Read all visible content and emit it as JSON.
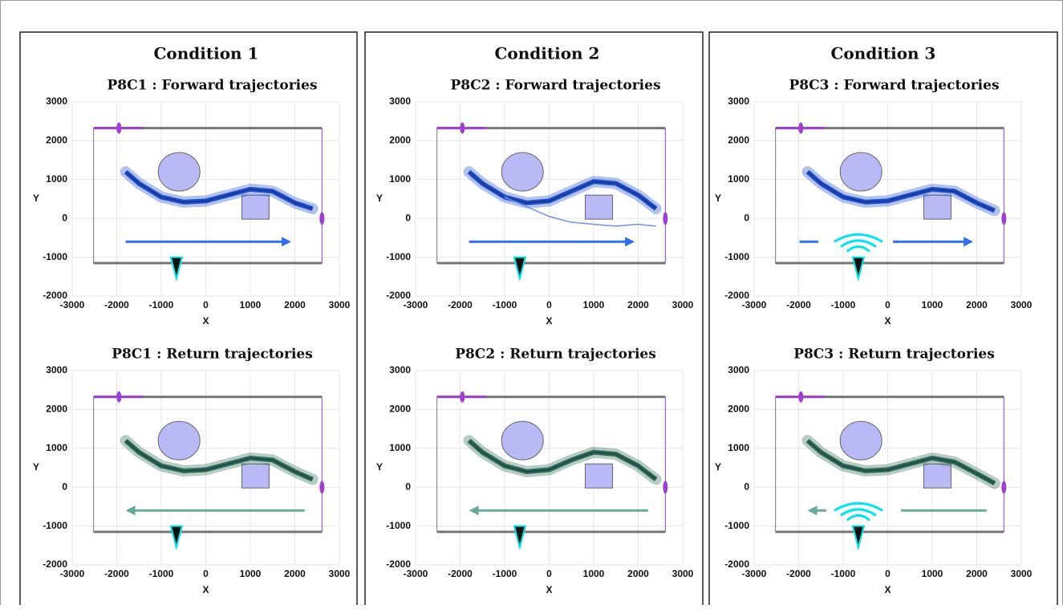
{
  "conditions": [
    "Condition 1",
    "Condition 2",
    "Condition 3"
  ],
  "chart_data": [
    {
      "type": "line",
      "title": "P8C1 : Forward trajectories",
      "x_label": "X",
      "y_label": "Y",
      "xlim": [
        -3000,
        3000
      ],
      "ylim": [
        -2000,
        3000
      ],
      "xticks": [
        -3000,
        -2000,
        -1000,
        0,
        1000,
        2000,
        3000
      ],
      "yticks": [
        -2000,
        -1000,
        0,
        1000,
        2000,
        3000
      ],
      "grid": true,
      "series": [
        {
          "color": "#1f4fd0",
          "x": [
            -1800,
            -1500,
            -1000,
            -500,
            0,
            500,
            1000,
            1500,
            2000,
            2400
          ],
          "values": [
            1200,
            900,
            550,
            420,
            450,
            600,
            750,
            700,
            400,
            250
          ]
        }
      ]
    },
    {
      "type": "line",
      "title": "P8C1 : Return trajectories",
      "x_label": "X",
      "y_label": "Y",
      "xlim": [
        -3000,
        3000
      ],
      "ylim": [
        -2000,
        3000
      ],
      "xticks": [
        -3000,
        -2000,
        -1000,
        0,
        1000,
        2000,
        3000
      ],
      "yticks": [
        -2000,
        -1000,
        0,
        1000,
        2000,
        3000
      ],
      "grid": true,
      "series": [
        {
          "color": "#2e6b55",
          "x": [
            -1800,
            -1500,
            -1000,
            -500,
            0,
            500,
            1000,
            1500,
            2000,
            2400
          ],
          "values": [
            1200,
            900,
            550,
            420,
            450,
            600,
            750,
            700,
            400,
            200
          ]
        }
      ]
    },
    {
      "type": "line",
      "title": "P8C2 : Forward trajectories",
      "x_label": "X",
      "y_label": "Y",
      "xlim": [
        -3000,
        3000
      ],
      "ylim": [
        -2000,
        3000
      ],
      "xticks": [
        -3000,
        -2000,
        -1000,
        0,
        1000,
        2000,
        3000
      ],
      "yticks": [
        -2000,
        -1000,
        0,
        1000,
        2000,
        3000
      ],
      "grid": true,
      "series": [
        {
          "color": "#1f4fd0",
          "x": [
            -1800,
            -1500,
            -1000,
            -500,
            0,
            500,
            1000,
            1500,
            2000,
            2400
          ],
          "values": [
            1200,
            900,
            550,
            400,
            450,
            700,
            950,
            900,
            600,
            250
          ]
        },
        {
          "color": "#6f93e8",
          "x": [
            -1000,
            -500,
            0,
            500,
            1000,
            1500,
            2000,
            2400
          ],
          "values": [
            550,
            300,
            50,
            -100,
            -150,
            -200,
            -150,
            -200
          ]
        }
      ]
    },
    {
      "type": "line",
      "title": "P8C2 : Return trajectories",
      "x_label": "X",
      "y_label": "Y",
      "xlim": [
        -3000,
        3000
      ],
      "ylim": [
        -2000,
        3000
      ],
      "xticks": [
        -3000,
        -2000,
        -1000,
        0,
        1000,
        2000,
        3000
      ],
      "yticks": [
        -2000,
        -1000,
        0,
        1000,
        2000,
        3000
      ],
      "grid": true,
      "series": [
        {
          "color": "#2e6b55",
          "x": [
            -1800,
            -1500,
            -1000,
            -500,
            0,
            500,
            1000,
            1500,
            2000,
            2400
          ],
          "values": [
            1200,
            900,
            550,
            400,
            450,
            700,
            900,
            850,
            550,
            200
          ]
        }
      ]
    },
    {
      "type": "line",
      "title": "P8C3 : Forward trajectories",
      "x_label": "X",
      "y_label": "Y",
      "xlim": [
        -3000,
        3000
      ],
      "ylim": [
        -2000,
        3000
      ],
      "xticks": [
        -3000,
        -2000,
        -1000,
        0,
        1000,
        2000,
        3000
      ],
      "yticks": [
        -2000,
        -1000,
        0,
        1000,
        2000,
        3000
      ],
      "grid": true,
      "series": [
        {
          "color": "#1f4fd0",
          "x": [
            -1800,
            -1500,
            -1000,
            -500,
            0,
            500,
            1000,
            1500,
            2000,
            2400
          ],
          "values": [
            1200,
            900,
            550,
            420,
            450,
            600,
            750,
            700,
            400,
            200
          ]
        }
      ]
    },
    {
      "type": "line",
      "title": "P8C3 : Return trajectories",
      "x_label": "X",
      "y_label": "Y",
      "xlim": [
        -3000,
        3000
      ],
      "ylim": [
        -2000,
        3000
      ],
      "xticks": [
        -3000,
        -2000,
        -1000,
        0,
        1000,
        2000,
        3000
      ],
      "yticks": [
        -2000,
        -1000,
        0,
        1000,
        2000,
        3000
      ],
      "grid": true,
      "series": [
        {
          "color": "#2e6b55",
          "x": [
            -1800,
            -1500,
            -1000,
            -500,
            0,
            500,
            1000,
            1500,
            2000,
            2400
          ],
          "values": [
            1200,
            900,
            550,
            420,
            450,
            600,
            750,
            650,
            350,
            100
          ]
        }
      ]
    }
  ]
}
